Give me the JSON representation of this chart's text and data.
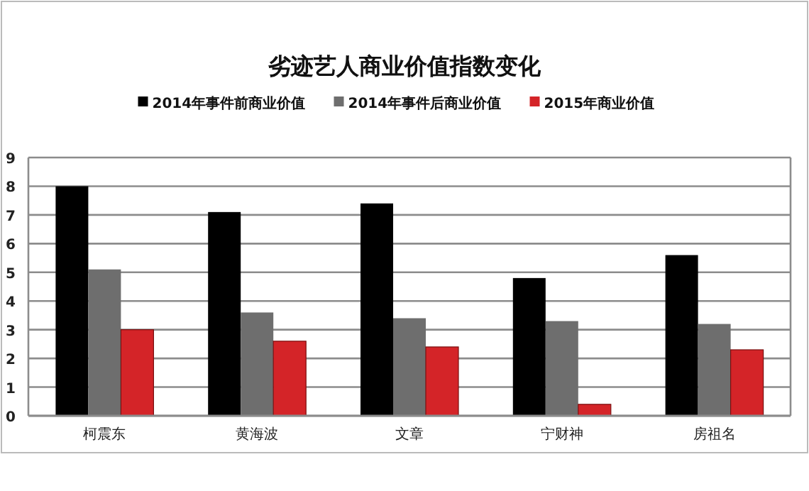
{
  "chart_data": {
    "type": "bar",
    "title": "劣迹艺人商业价值指数变化",
    "categories": [
      "柯震东",
      "黄海波",
      "文章",
      "宁财神",
      "房祖名"
    ],
    "series": [
      {
        "name": "2014年事件前商业价值",
        "color": "#000000",
        "values": [
          8.0,
          7.1,
          7.4,
          4.8,
          5.6
        ]
      },
      {
        "name": "2014年事件后商业价值",
        "color": "#6e6e6e",
        "values": [
          5.1,
          3.6,
          3.4,
          3.3,
          3.2
        ]
      },
      {
        "name": "2015年商业价值",
        "color": "#d42428",
        "values": [
          3.0,
          2.6,
          2.4,
          0.4,
          2.3
        ]
      }
    ],
    "ylim": [
      0,
      9
    ],
    "yticks": [
      0,
      1,
      2,
      3,
      4,
      5,
      6,
      7,
      8,
      9
    ],
    "grid": "y",
    "legend": "top"
  }
}
